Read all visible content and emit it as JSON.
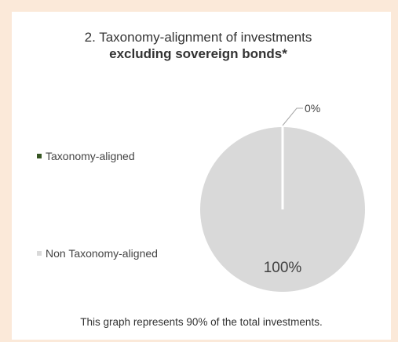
{
  "chart_data": {
    "type": "pie",
    "title": "2. Taxonomy-alignment of investments",
    "subtitle": "excluding sovereign bonds*",
    "slices": [
      {
        "name": "Taxonomy-aligned",
        "value": 0,
        "label": "0%",
        "color": "#375623"
      },
      {
        "name": "Non Taxonomy-aligned",
        "value": 100,
        "label": "100%",
        "color": "#d9d9d9"
      }
    ],
    "legend_position": "left"
  },
  "footnote": "This graph represents 90% of the total investments.",
  "colors": {
    "background": "#fbe9d9",
    "card": "#ffffff"
  }
}
